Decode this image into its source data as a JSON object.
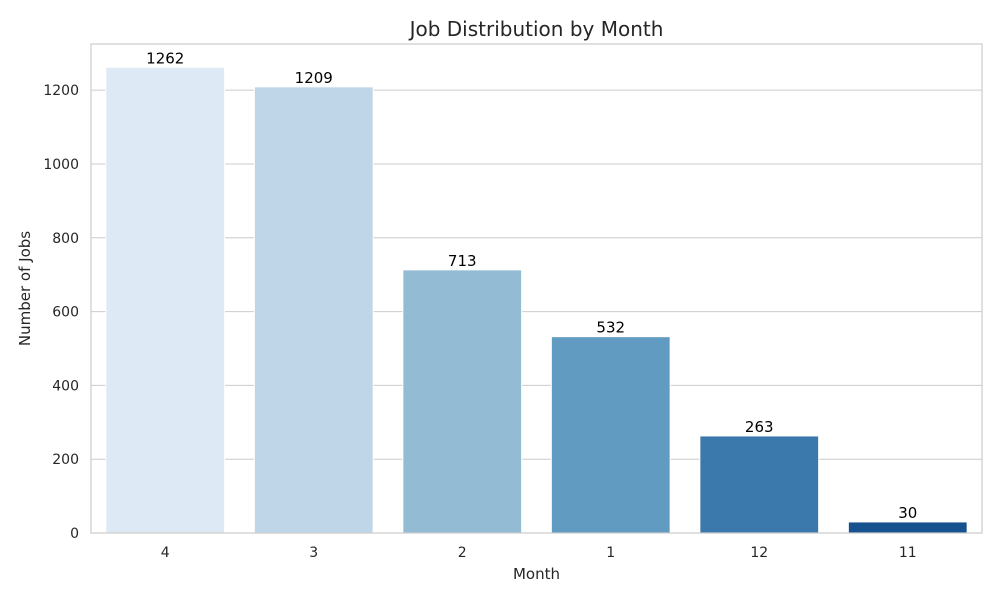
{
  "chart_data": {
    "type": "bar",
    "title": "Job Distribution by Month",
    "xlabel": "Month",
    "ylabel": "Number of Jobs",
    "categories": [
      "4",
      "3",
      "2",
      "1",
      "12",
      "11"
    ],
    "values": [
      1262,
      1209,
      713,
      532,
      263,
      30
    ],
    "ylim": [
      0,
      1325
    ],
    "yticks": [
      0,
      200,
      400,
      600,
      800,
      1000,
      1200
    ],
    "grid": "horizontal",
    "colors": [
      "#dde9f5",
      "#bfd6e8",
      "#93bbd4",
      "#629bc1",
      "#3b78ab",
      "#16528e"
    ]
  }
}
